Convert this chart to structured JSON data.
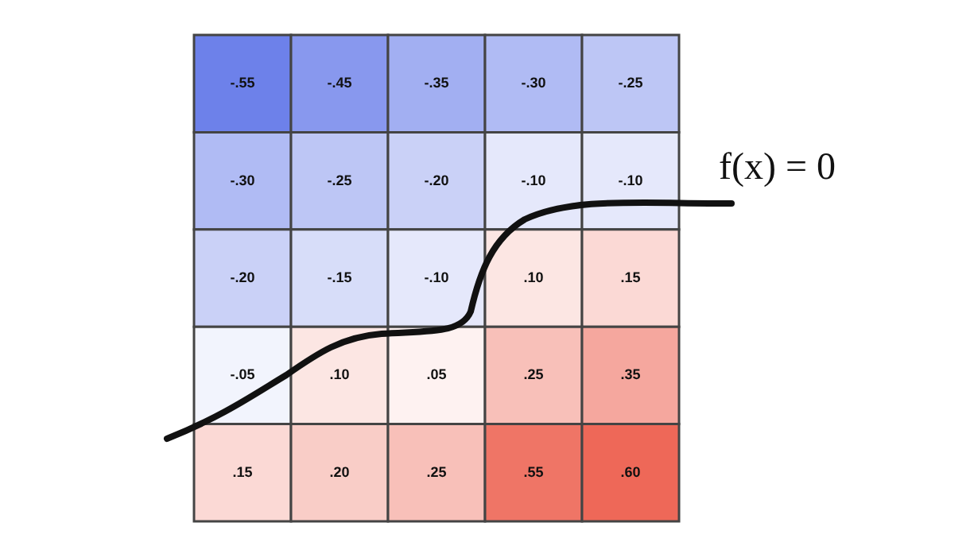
{
  "chart_data": {
    "type": "heatmap",
    "categories": [
      null,
      null,
      null,
      null,
      null
    ],
    "y_categories": [
      null,
      null,
      null,
      null,
      null
    ],
    "cells": [
      [
        -0.55,
        -0.45,
        -0.35,
        -0.3,
        -0.25
      ],
      [
        -0.3,
        -0.25,
        -0.2,
        -0.1,
        -0.1
      ],
      [
        -0.2,
        -0.15,
        -0.1,
        0.1,
        0.15
      ],
      [
        -0.05,
        0.1,
        0.05,
        0.25,
        0.35
      ],
      [
        0.15,
        0.2,
        0.25,
        0.55,
        0.6
      ]
    ],
    "cell_labels": [
      [
        "-.55",
        "-.45",
        "-.35",
        "-.30",
        "-.25"
      ],
      [
        "-.30",
        "-.25",
        "-.20",
        "-.10",
        "-.10"
      ],
      [
        "-.20",
        "-.15",
        "-.10",
        ".10",
        ".15"
      ],
      [
        "-.05",
        ".10",
        ".05",
        ".25",
        ".35"
      ],
      [
        ".15",
        ".20",
        ".25",
        ".55",
        ".60"
      ]
    ],
    "annotations": [
      "f(x) = 0"
    ]
  }
}
